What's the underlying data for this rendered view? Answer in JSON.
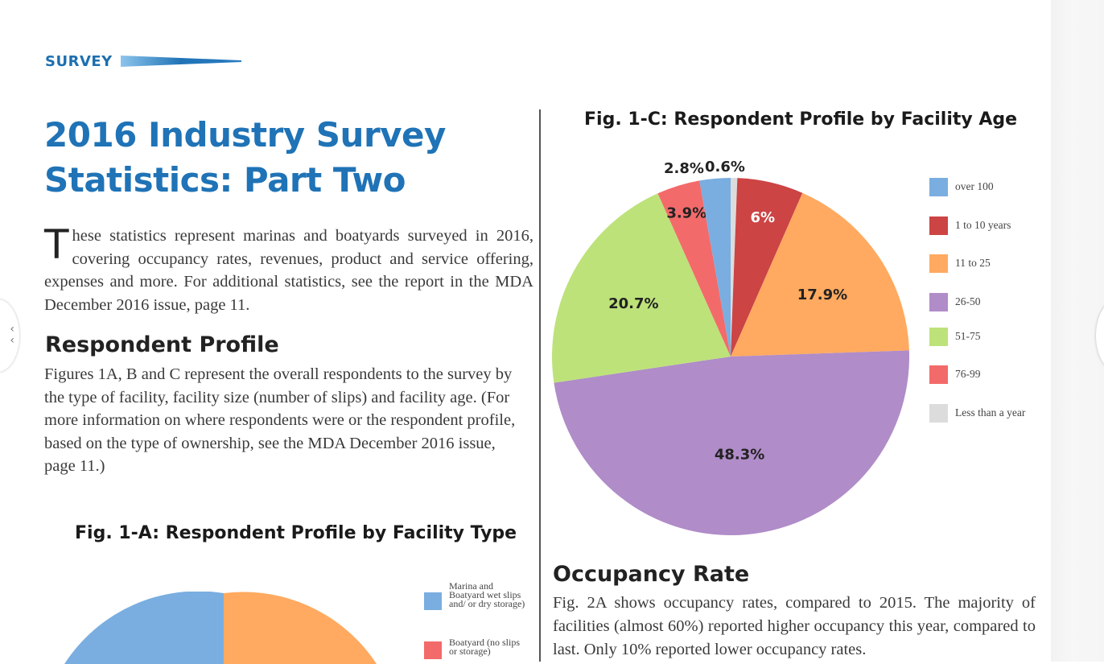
{
  "header": {
    "section_tag": "SURVEY"
  },
  "article": {
    "title_line1": "2016 Industry Survey",
    "title_line2": "Statistics: Part Two",
    "intro_dropcap": "T",
    "intro_body": "hese statistics represent marinas and boatyards surveyed in 2016, covering occupancy rates, revenues, product and service offering, expenses and more. For additional statistics, see the report in the MDA December 2016 issue, page 11.",
    "respondent_heading": "Respondent Profile",
    "respondent_body": "Figures 1A, B and C represent the overall respondents to the survey by the type of facility, facility size (number of slips) and facility age. (For more information on where respondents were or the respondent profile, based on the type of ownership, see the MDA December 2016 issue, page 11.)",
    "occupancy_heading": "Occupancy Rate",
    "occupancy_body": "Fig. 2A shows occupancy rates, compared to 2015. The majority of facilities (almost 60%) reported higher occupancy this year, compared to last. Only 10% reported lower occupancy rates."
  },
  "figure_1a": {
    "title": "Fig. 1-A: Respondent Profile by Facility Type",
    "legend": [
      {
        "label": "Marina and Boatyard wet slips and/ or dry storage)",
        "color": "#7aaee0"
      },
      {
        "label": "Boatyard (no slips or storage)",
        "color": "#f36a6a"
      }
    ]
  },
  "chart_data": [
    {
      "type": "pie",
      "title": "Fig. 1-C: Respondent Profile by Facility Age",
      "slices": [
        {
          "label": "Less than a year",
          "value": 0.6,
          "display": "0.6%",
          "color": "#dcdcdc"
        },
        {
          "label": "1 to 10 years",
          "value": 6,
          "display": "6%",
          "color": "#cc4444"
        },
        {
          "label": "11 to 25",
          "value": 17.9,
          "display": "17.9%",
          "color": "#ffaa60"
        },
        {
          "label": "26-50",
          "value": 48.3,
          "display": "48.3%",
          "color": "#b08cc8"
        },
        {
          "label": "51-75",
          "value": 20.7,
          "display": "20.7%",
          "color": "#bde27a"
        },
        {
          "label": "76-99",
          "value": 3.9,
          "display": "3.9%",
          "color": "#f36a6a"
        },
        {
          "label": "over 100",
          "value": 2.8,
          "display": "2.8%",
          "color": "#7aaee0"
        }
      ],
      "legend_order": [
        "over 100",
        "1 to 10 years",
        "11 to 25",
        "26-50",
        "51-75",
        "76-99",
        "Less than a year"
      ],
      "legend_placement": "right"
    }
  ]
}
